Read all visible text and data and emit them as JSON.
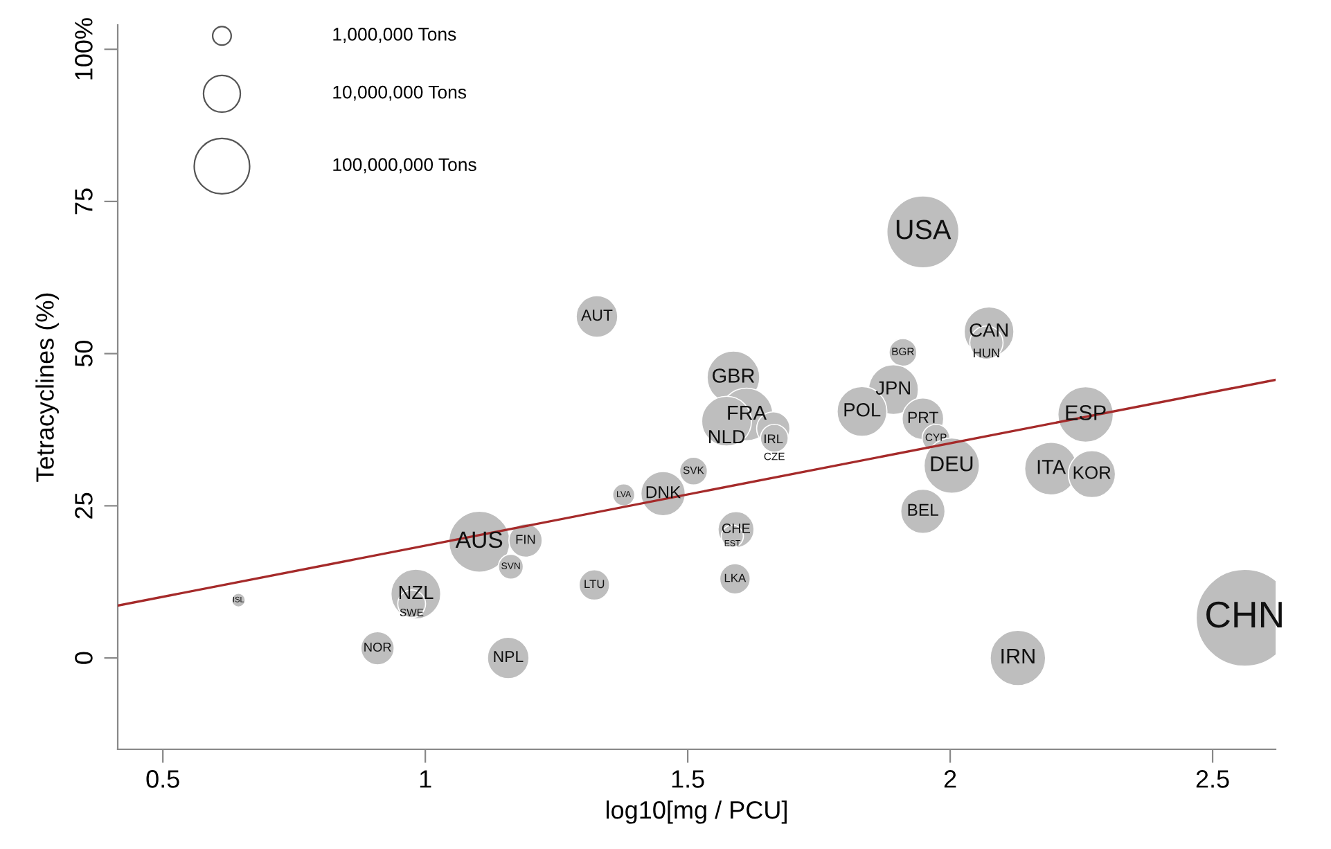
{
  "chart_data": {
    "type": "bubble",
    "xlabel": "log10[mg / PCU]",
    "ylabel": "Tetracyclines (%)",
    "xlim": [
      0.414,
      2.62
    ],
    "ylim": [
      -15,
      104
    ],
    "xticks": [
      0.5,
      1,
      1.5,
      2,
      2.5
    ],
    "yticks": [
      0,
      25,
      50,
      75,
      {
        "value": 100,
        "label": "100%"
      }
    ],
    "series": [
      {
        "color": "#bebebe",
        "x": [
          1.948,
          2.074,
          2.069,
          1.91,
          1.587,
          1.612,
          1.574,
          1.663,
          1.665,
          1.892,
          1.832,
          1.948,
          1.973,
          2.003,
          2.258,
          2.192,
          2.27,
          1.948,
          2.129,
          1.511,
          1.453,
          1.378,
          1.592,
          1.585,
          1.59,
          1.327,
          1.103,
          1.191,
          1.163,
          1.322,
          0.644,
          0.982,
          0.974,
          0.909,
          1.158,
          2.561
        ],
        "values": [
          70.0,
          53.6,
          51.8,
          50.2,
          46.1,
          40.0,
          38.9,
          37.7,
          36.1,
          44.1,
          40.5,
          39.3,
          36.1,
          31.6,
          40.0,
          31.1,
          30.2,
          24.1,
          0.0,
          30.7,
          27.0,
          26.8,
          21.1,
          20.0,
          13.0,
          56.1,
          19.1,
          19.3,
          15.0,
          12.0,
          9.5,
          10.5,
          8.9,
          1.6,
          0.0,
          6.6
        ],
        "sizes": [
          0.552,
          0.264,
          0.118,
          0.082,
          0.295,
          0.295,
          0.264,
          0.118,
          0.082,
          0.264,
          0.264,
          0.184,
          0.082,
          0.327,
          0.327,
          0.295,
          0.236,
          0.209,
          0.327,
          0.082,
          0.209,
          0.052,
          0.138,
          0.052,
          0.099,
          0.184,
          0.395,
          0.118,
          0.066,
          0.099,
          0.02,
          0.264,
          0.082,
          0.118,
          0.184,
          1
        ]
      },
      {
        "type": "line",
        "color": "#a52a2a",
        "x": [
          0.414,
          2.62
        ],
        "values": [
          8.6,
          45.7
        ]
      }
    ],
    "annotations": [
      "1,000,000 Tons",
      "10,000,000 Tons",
      "100,000,000 Tons",
      {
        "text": "USA",
        "x": 1.948,
        "y": 70.0
      },
      {
        "text": "CAN",
        "x": 2.074,
        "y": 53.6
      },
      {
        "text": "HUN",
        "x": 2.069,
        "y": 51.8
      },
      {
        "text": "BGR",
        "x": 1.91,
        "y": 50.2
      },
      {
        "text": "GBR",
        "x": 1.587,
        "y": 46.1
      },
      {
        "text": "FRA",
        "x": 1.612,
        "y": 40.0
      },
      {
        "text": "NLD",
        "x": 1.574,
        "y": 38.9
      },
      {
        "text": "IRL",
        "x": 1.663,
        "y": 37.7
      },
      {
        "text": "CZE",
        "x": 1.665,
        "y": 36.1
      },
      {
        "text": "JPN",
        "x": 1.892,
        "y": 44.1
      },
      {
        "text": "POL",
        "x": 1.832,
        "y": 40.5
      },
      {
        "text": "PRT",
        "x": 1.948,
        "y": 39.3
      },
      {
        "text": "CYP",
        "x": 1.973,
        "y": 36.1
      },
      {
        "text": "DEU",
        "x": 2.003,
        "y": 31.6
      },
      {
        "text": "ESP",
        "x": 2.258,
        "y": 40.0
      },
      {
        "text": "ITA",
        "x": 2.192,
        "y": 31.1
      },
      {
        "text": "KOR",
        "x": 2.27,
        "y": 30.2
      },
      {
        "text": "BEL",
        "x": 1.948,
        "y": 24.1
      },
      {
        "text": "IRN",
        "x": 2.129,
        "y": 0.0
      },
      {
        "text": "SVK",
        "x": 1.511,
        "y": 30.7
      },
      {
        "text": "DNK",
        "x": 1.453,
        "y": 27.0
      },
      {
        "text": "LVA",
        "x": 1.378,
        "y": 26.8
      },
      {
        "text": "CHE",
        "x": 1.592,
        "y": 21.1
      },
      {
        "text": "EST",
        "x": 1.585,
        "y": 20.0
      },
      {
        "text": "LKA",
        "x": 1.59,
        "y": 13.0
      },
      {
        "text": "AUT",
        "x": 1.327,
        "y": 56.1
      },
      {
        "text": "AUS",
        "x": 1.103,
        "y": 19.1
      },
      {
        "text": "FIN",
        "x": 1.191,
        "y": 19.3
      },
      {
        "text": "SVN",
        "x": 1.163,
        "y": 15.0
      },
      {
        "text": "LTU",
        "x": 1.322,
        "y": 12.0
      },
      {
        "text": "ISL",
        "x": 0.644,
        "y": 9.5
      },
      {
        "text": "NZL",
        "x": 0.982,
        "y": 10.5
      },
      {
        "text": "SWE",
        "x": 0.974,
        "y": 8.9
      },
      {
        "text": "NOR",
        "x": 0.909,
        "y": 1.6
      },
      {
        "text": "NPL",
        "x": 1.158,
        "y": 0.0
      },
      {
        "text": "CHN",
        "x": 2.561,
        "y": 6.6
      }
    ]
  }
}
